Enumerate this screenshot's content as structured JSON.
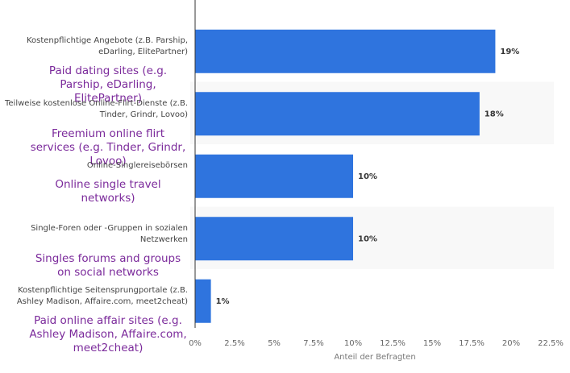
{
  "chart_data": {
    "type": "bar",
    "orientation": "horizontal",
    "categories": [
      "Kostenpflichtige Angebote (z.B. Parship, eDarling, ElitePartner)",
      "Teilweise kostenlose Online-Flirt-Dienste (z.B. Tinder, Grindr, Lovoo)",
      "Online-Singlereisebörsen",
      "Single-Foren oder -Gruppen in sozialen Netzwerken",
      "Kostenpflichtige Seitensprungportale (z.B. Ashley Madison, Affaire.com, meet2cheat)"
    ],
    "translations": [
      "Paid dating sites (e.g. Parship, eDarling, ElitePartner)",
      "Freemium online flirt services (e.g. Tinder, Grindr, Lovoo)",
      "Online single travel networks)",
      "Singles forums and groups on social networks",
      "Paid online affair sites (e.g. Ashley Madison, Affaire.com, meet2cheat)"
    ],
    "values": [
      19,
      18,
      10,
      10,
      1
    ],
    "value_labels": [
      "19%",
      "18%",
      "10%",
      "10%",
      "1%"
    ],
    "color": "#2f74de",
    "translation_color": "#7b2a9b",
    "xlabel": "Anteil der Befragten",
    "xlim": [
      0,
      22.5
    ],
    "xticks": [
      {
        "value": 0,
        "label": "0%"
      },
      {
        "value": 2.5,
        "label": "2.5%"
      },
      {
        "value": 5,
        "label": "5%"
      },
      {
        "value": 7.5,
        "label": "7.5%"
      },
      {
        "value": 10,
        "label": "10%"
      },
      {
        "value": 12.5,
        "label": "12.5%"
      },
      {
        "value": 15,
        "label": "15%"
      },
      {
        "value": 17.5,
        "label": "17.5%"
      },
      {
        "value": 20,
        "label": "20%"
      },
      {
        "value": 22.5,
        "label": "22.5%"
      }
    ],
    "grid": false
  }
}
